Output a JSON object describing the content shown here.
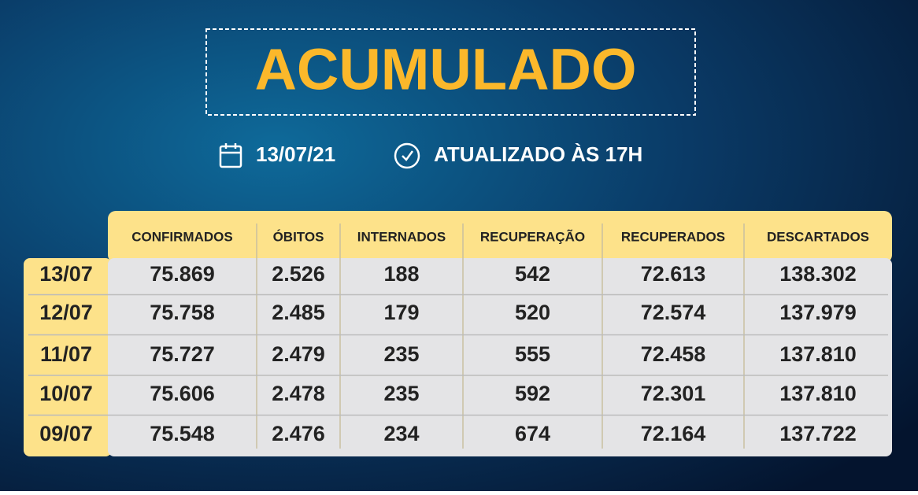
{
  "header": {
    "title": "ACUMULADO",
    "date": "13/07/21",
    "updated": "ATUALIZADO ÀS 17H"
  },
  "table": {
    "columns": [
      "CONFIRMADOS",
      "ÓBITOS",
      "INTERNADOS",
      "RECUPERAÇÃO",
      "RECUPERADOS",
      "DESCARTADOS"
    ],
    "rows": [
      {
        "date": "13/07",
        "cells": [
          "75.869",
          "2.526",
          "188",
          "542",
          "72.613",
          "138.302"
        ]
      },
      {
        "date": "12/07",
        "cells": [
          "75.758",
          "2.485",
          "179",
          "520",
          "72.574",
          "137.979"
        ]
      },
      {
        "date": "11/07",
        "cells": [
          "75.727",
          "2.479",
          "235",
          "555",
          "72.458",
          "137.810"
        ]
      },
      {
        "date": "10/07",
        "cells": [
          "75.606",
          "2.478",
          "235",
          "592",
          "72.301",
          "137.810"
        ]
      },
      {
        "date": "09/07",
        "cells": [
          "75.548",
          "2.476",
          "234",
          "674",
          "72.164",
          "137.722"
        ]
      }
    ]
  }
}
